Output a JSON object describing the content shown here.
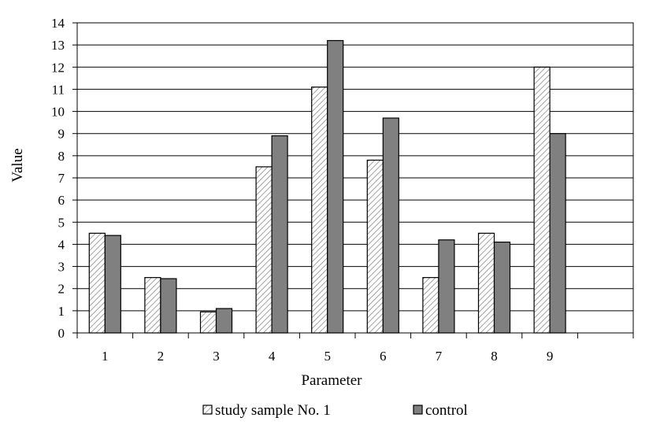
{
  "chart_data": {
    "type": "bar",
    "xlabel": "Parameter",
    "ylabel": "Value",
    "categories": [
      "1",
      "2",
      "3",
      "4",
      "5",
      "6",
      "7",
      "8",
      "9",
      ""
    ],
    "ylim": [
      0,
      14
    ],
    "yticks": [
      0,
      1,
      2,
      3,
      4,
      5,
      6,
      7,
      8,
      9,
      10,
      11,
      12,
      13,
      14
    ],
    "grid": true,
    "legend_position": "bottom",
    "series": [
      {
        "name": "study sample No. 1",
        "pattern": "hatched",
        "color": "#ffffff",
        "values": [
          4.5,
          2.5,
          0.95,
          7.5,
          11.1,
          7.8,
          2.5,
          4.5,
          12.0,
          null
        ]
      },
      {
        "name": "control",
        "pattern": "solid",
        "color": "#808080",
        "values": [
          4.4,
          2.45,
          1.1,
          8.9,
          13.2,
          9.7,
          4.2,
          4.1,
          9.0,
          null
        ]
      }
    ]
  }
}
